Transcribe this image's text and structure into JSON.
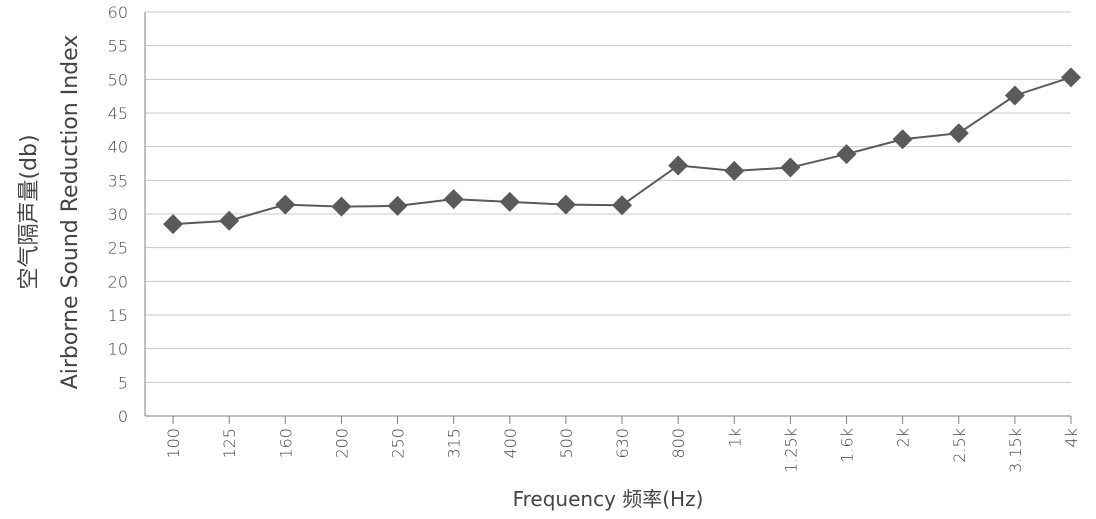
{
  "chart_data": {
    "type": "line",
    "xlabel": "Frequency 频率(Hz)",
    "ylabel_cn": "空气隔声量(db)",
    "ylabel_en": "Airborne Sound Reduction Index",
    "ylim": [
      0,
      60
    ],
    "yticks": [
      "0",
      "5",
      "10",
      "15",
      "20",
      "25",
      "30",
      "35",
      "40",
      "45",
      "50",
      "55",
      "60"
    ],
    "grid": true,
    "categories": [
      "100",
      "125",
      "160",
      "200",
      "250",
      "315",
      "400",
      "500",
      "630",
      "800",
      "1k",
      "1.25k",
      "1.6k",
      "2k",
      "2.5k",
      "3.15k",
      "4k"
    ],
    "series": [
      {
        "values": [
          28.5,
          29.0,
          31.4,
          31.1,
          31.2,
          32.2,
          31.8,
          31.4,
          31.3,
          37.2,
          36.4,
          36.9,
          38.9,
          41.1,
          42.0,
          47.6,
          50.3
        ],
        "color": "#5a5a5a",
        "marker": "diamond"
      }
    ]
  }
}
